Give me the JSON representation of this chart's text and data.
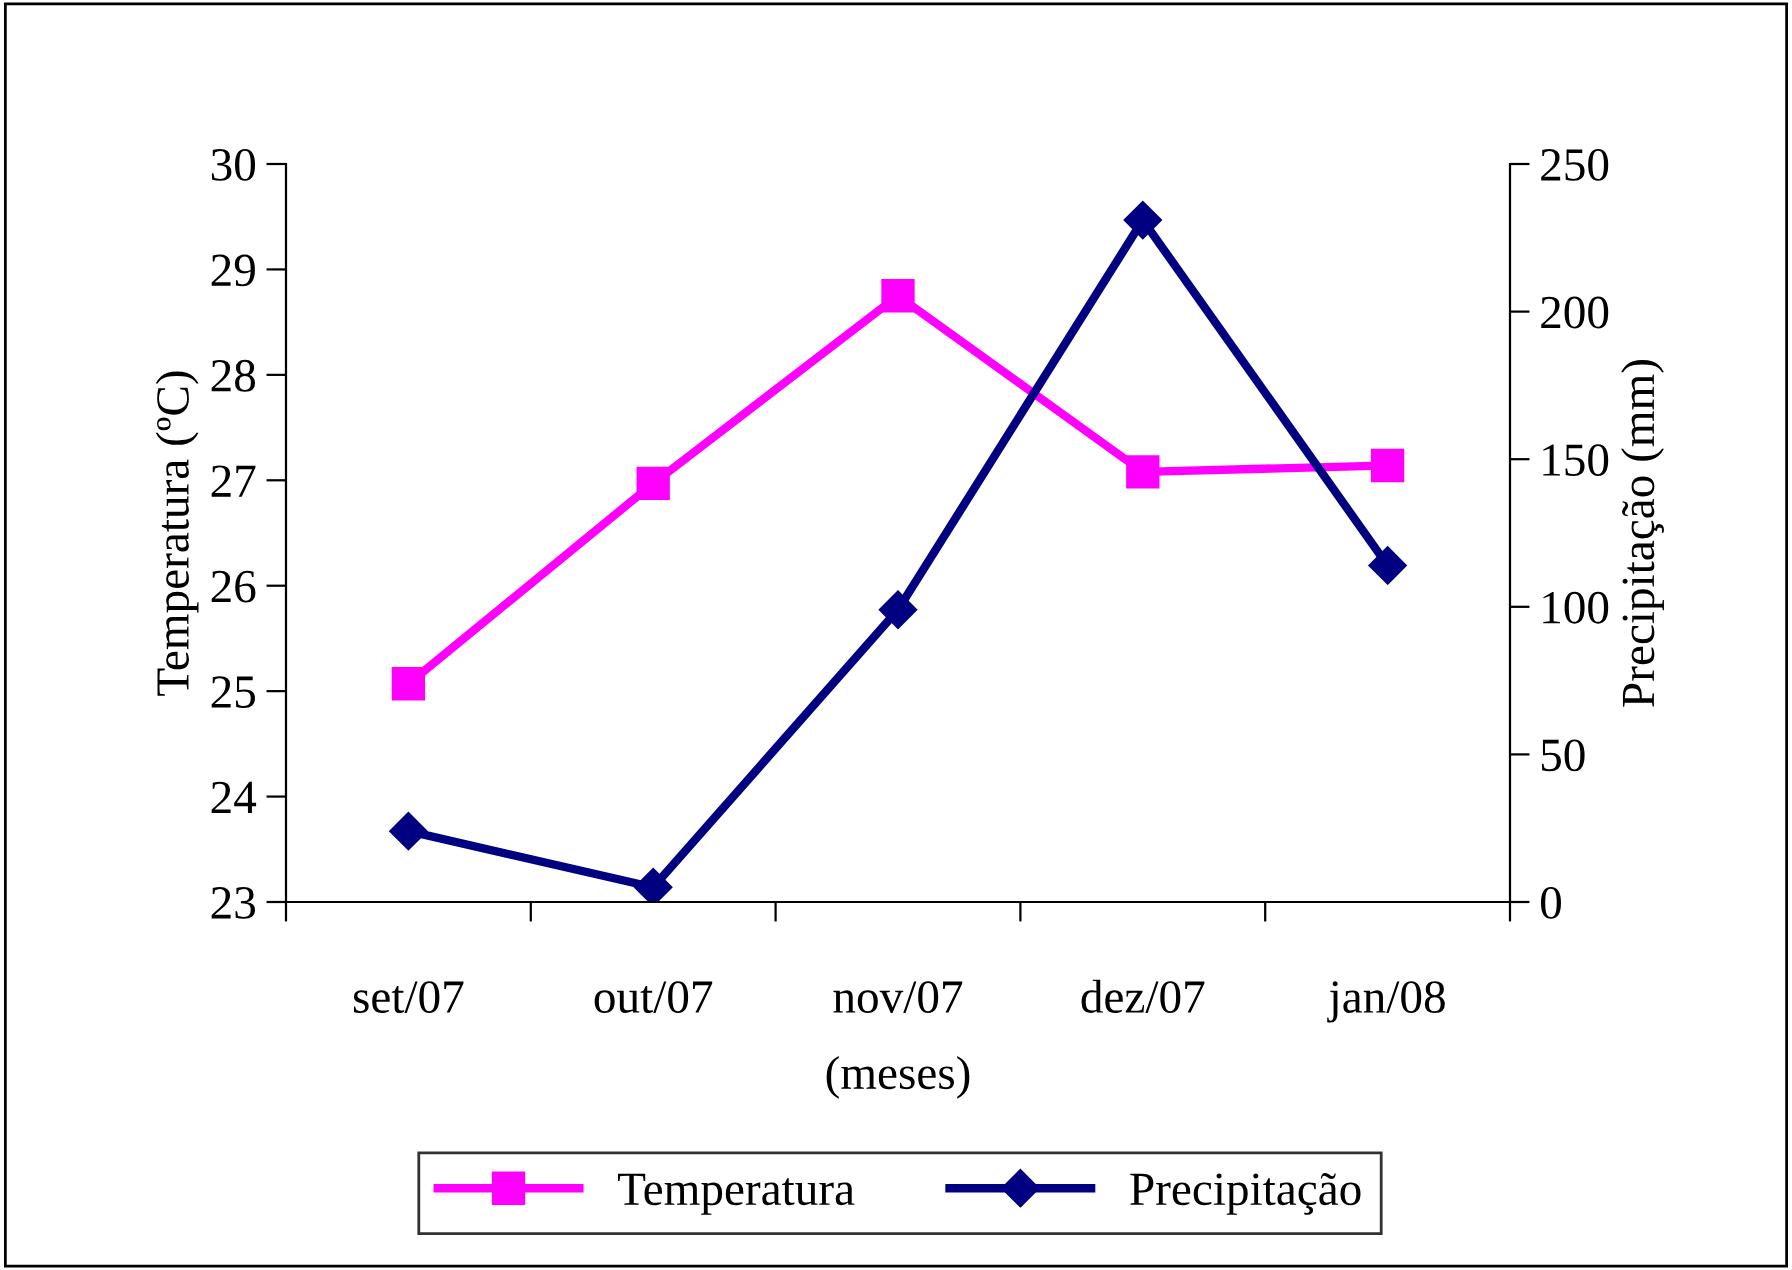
{
  "chart_data": {
    "type": "line",
    "xlabel": "(meses)",
    "ylabel": "Temperatura (ºC)",
    "y2label": "Precipitação (mm)",
    "categories": [
      "set/07",
      "out/07",
      "nov/07",
      "dez/07",
      "jan/08"
    ],
    "series": [
      {
        "name": "Temperatura",
        "color": "#ff00ff",
        "marker": "square",
        "values": [
          25.07,
          26.97,
          28.75,
          27.08,
          27.14
        ]
      },
      {
        "name": "Precipitação",
        "color": "#000080",
        "marker": "diamond",
        "axis": "y2",
        "values": [
          24,
          5,
          99,
          231,
          114
        ]
      }
    ],
    "ylim": [
      23,
      30
    ],
    "yticks": [
      23,
      24,
      25,
      26,
      27,
      28,
      29,
      30
    ],
    "y2lim": [
      0,
      250
    ],
    "y2ticks": [
      0,
      50,
      100,
      150,
      200,
      250
    ],
    "grid": false,
    "legend": "bottom",
    "line_style": "solid"
  }
}
